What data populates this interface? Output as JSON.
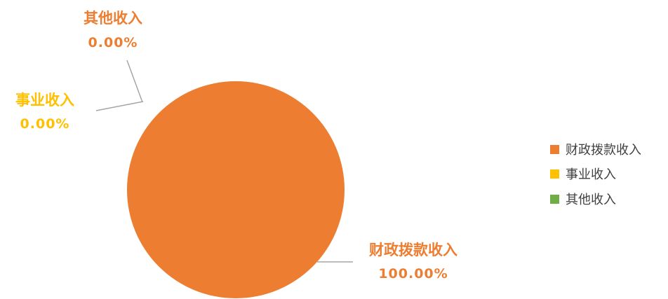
{
  "chart_data": {
    "type": "pie",
    "categories": [
      "财政拨款收入",
      "事业收入",
      "其他收入"
    ],
    "values": [
      100.0,
      0.0,
      0.0
    ],
    "value_labels": [
      "100.00%",
      "0.00%",
      "0.00%"
    ],
    "colors": [
      "#ED7D31",
      "#FFC000",
      "#70AD47"
    ],
    "legend": {
      "position": "right",
      "entries": [
        "财政拨款收入",
        "事业收入",
        "其他收入"
      ]
    }
  }
}
